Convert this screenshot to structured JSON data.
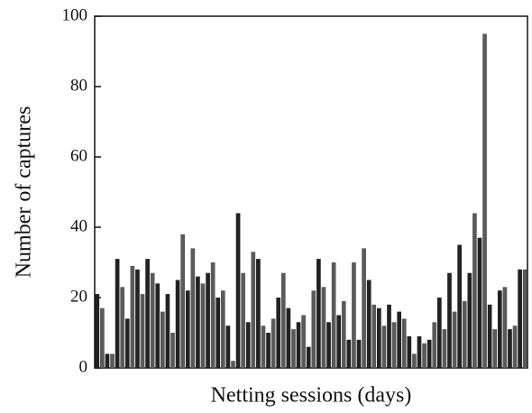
{
  "chart_data": {
    "type": "bar",
    "xlabel": "Netting sessions (days)",
    "ylabel": "Number of captures",
    "categories": [
      null,
      null,
      null,
      null,
      null,
      null,
      null,
      null,
      null,
      null,
      null,
      null,
      null,
      null,
      null,
      null,
      null,
      null,
      null,
      null,
      null,
      null,
      null,
      null,
      null,
      null,
      null,
      null,
      null,
      null,
      null,
      null,
      null,
      null,
      null,
      null,
      null,
      null,
      null,
      null,
      null,
      null,
      null,
      null,
      null,
      null,
      null,
      null,
      null,
      null,
      null,
      null,
      null,
      null,
      null,
      null,
      null,
      null,
      null,
      null,
      null,
      null,
      null,
      null,
      null,
      null,
      null,
      null,
      null,
      null,
      null,
      null,
      null,
      null,
      null,
      null,
      null,
      null,
      null,
      null,
      null,
      null,
      null,
      null,
      null,
      null
    ],
    "values": [
      21,
      17,
      4,
      4,
      31,
      23,
      14,
      29,
      28,
      21,
      31,
      27,
      24,
      16,
      21,
      10,
      25,
      38,
      22,
      34,
      26,
      24,
      27,
      30,
      20,
      22,
      12,
      2,
      44,
      27,
      13,
      33,
      31,
      12,
      10,
      14,
      20,
      27,
      17,
      11,
      13,
      15,
      6,
      22,
      31,
      23,
      13,
      30,
      15,
      19,
      8,
      30,
      8,
      34,
      25,
      18,
      17,
      12,
      18,
      13,
      16,
      14,
      9,
      4,
      9,
      7,
      8,
      13,
      20,
      11,
      27,
      16,
      35,
      19,
      27,
      44,
      37,
      95,
      18,
      11,
      22,
      23,
      11,
      12,
      28,
      28
    ],
    "color": "#222222",
    "ylim": [
      0,
      100
    ],
    "yticks": [
      0,
      20,
      40,
      60,
      80,
      100
    ]
  }
}
